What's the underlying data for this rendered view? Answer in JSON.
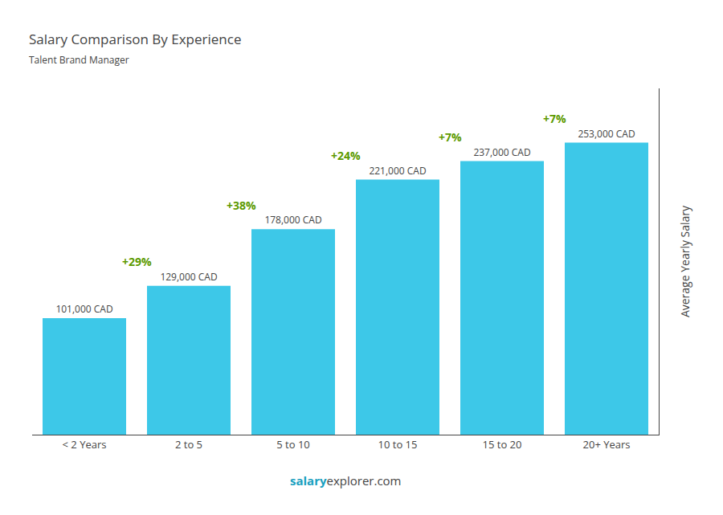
{
  "chart_data": {
    "type": "bar",
    "title": "Salary Comparison By Experience",
    "subtitle": "Talent Brand Manager",
    "categories": [
      "< 2 Years",
      "2 to 5",
      "5 to 10",
      "10 to 15",
      "15 to 20",
      "20+ Years"
    ],
    "values": [
      101000,
      129000,
      178000,
      221000,
      237000,
      253000
    ],
    "value_labels": [
      "101,000 CAD",
      "129,000 CAD",
      "178,000 CAD",
      "221,000 CAD",
      "237,000 CAD",
      "253,000 CAD"
    ],
    "data_labels": true,
    "color": "#3dc8e8",
    "ylabel": "Average Yearly Salary",
    "ylim": [
      0,
      300000
    ],
    "tick_labels": "x",
    "grid": false,
    "annotations": [
      "+29%",
      "+38%",
      "+24%",
      "+7%",
      "+7%"
    ],
    "footer": [
      "salary",
      "explorer.com"
    ]
  }
}
